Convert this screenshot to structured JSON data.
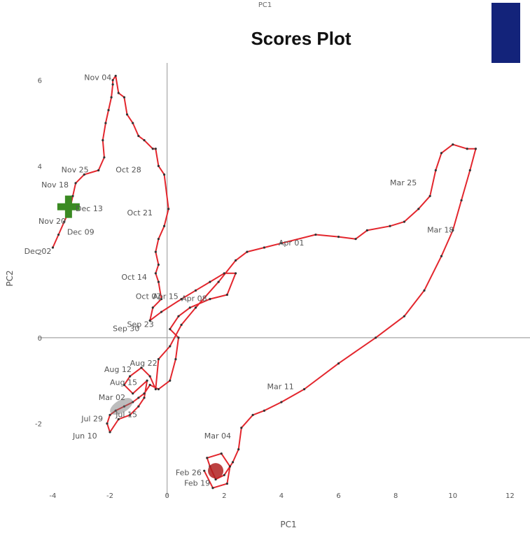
{
  "chart_data": {
    "type": "line",
    "title": "Scores Plot",
    "top_label": "PC1",
    "xlabel": "PC1",
    "ylabel": "PC2",
    "xlim": [
      -4.5,
      12.7
    ],
    "ylim": [
      -3.7,
      6.4
    ],
    "xticks": [
      -4,
      -2,
      0,
      2,
      4,
      6,
      8,
      10,
      12
    ],
    "yticks": [
      -2,
      0,
      2,
      4,
      6
    ],
    "grid": false,
    "legend_swatch_color": "#13237a",
    "colors": {
      "line": "#e3262d",
      "marker": "#333333",
      "cross": "#3a8a22",
      "blob": "#b02020",
      "axis": "#a6a6a6"
    },
    "series": [
      {
        "values": [
          [
            -4.0,
            2.1
          ],
          [
            -3.8,
            2.4
          ],
          [
            -3.6,
            2.7
          ],
          [
            -3.4,
            3.0
          ],
          [
            -3.3,
            3.3
          ],
          [
            -3.2,
            3.6
          ],
          [
            -2.9,
            3.8
          ],
          [
            -2.4,
            3.9
          ],
          [
            -2.2,
            4.2
          ],
          [
            -2.25,
            4.6
          ],
          [
            -2.15,
            5.0
          ],
          [
            -2.05,
            5.3
          ],
          [
            -1.95,
            5.6
          ],
          [
            -1.9,
            5.9
          ],
          [
            -1.9,
            6.0
          ],
          [
            -1.8,
            6.1
          ],
          [
            -1.7,
            5.7
          ],
          [
            -1.5,
            5.6
          ],
          [
            -1.4,
            5.2
          ],
          [
            -1.2,
            5.0
          ],
          [
            -1.0,
            4.7
          ],
          [
            -0.8,
            4.6
          ],
          [
            -0.5,
            4.4
          ],
          [
            -0.4,
            4.4
          ],
          [
            -0.3,
            4.0
          ],
          [
            -0.1,
            3.8
          ],
          [
            0.05,
            3.0
          ],
          [
            -0.1,
            2.6
          ],
          [
            -0.3,
            2.3
          ],
          [
            -0.4,
            2.0
          ],
          [
            -0.3,
            1.7
          ],
          [
            -0.4,
            1.5
          ],
          [
            -0.3,
            1.3
          ],
          [
            -0.2,
            0.9
          ],
          [
            -0.5,
            0.7
          ],
          [
            -0.6,
            0.4
          ],
          [
            -0.2,
            0.6
          ],
          [
            0.5,
            0.9
          ],
          [
            1.0,
            1.1
          ],
          [
            1.5,
            1.3
          ],
          [
            2.0,
            1.5
          ],
          [
            2.4,
            1.5
          ],
          [
            2.1,
            1.0
          ],
          [
            1.5,
            0.9
          ],
          [
            0.8,
            0.7
          ],
          [
            0.4,
            0.5
          ],
          [
            0.1,
            0.2
          ],
          [
            0.4,
            0.0
          ],
          [
            0.3,
            -0.5
          ],
          [
            0.1,
            -1.0
          ],
          [
            -0.3,
            -1.2
          ],
          [
            -0.6,
            -1.1
          ],
          [
            -0.8,
            -1.3
          ],
          [
            -1.0,
            -1.4
          ],
          [
            -1.2,
            -1.5
          ],
          [
            -1.5,
            -1.6
          ],
          [
            -1.8,
            -1.7
          ],
          [
            -2.0,
            -1.8
          ],
          [
            -2.1,
            -2.0
          ],
          [
            -2.0,
            -2.2
          ],
          [
            -1.7,
            -1.9
          ],
          [
            -1.3,
            -1.8
          ],
          [
            -1.0,
            -1.6
          ],
          [
            -0.8,
            -1.4
          ],
          [
            -0.7,
            -1.0
          ],
          [
            -1.2,
            -1.3
          ],
          [
            -1.5,
            -1.1
          ],
          [
            -1.3,
            -0.9
          ],
          [
            -0.9,
            -0.7
          ],
          [
            -0.6,
            -0.9
          ],
          [
            -0.4,
            -1.2
          ],
          [
            -0.3,
            -0.5
          ],
          [
            0.1,
            -0.2
          ],
          [
            0.5,
            0.3
          ],
          [
            1.0,
            0.7
          ],
          [
            1.8,
            1.3
          ],
          [
            2.4,
            1.8
          ],
          [
            2.8,
            2.0
          ],
          [
            3.4,
            2.1
          ],
          [
            4.0,
            2.2
          ],
          [
            5.2,
            2.4
          ],
          [
            6.0,
            2.35
          ],
          [
            6.6,
            2.3
          ],
          [
            7.0,
            2.5
          ],
          [
            7.8,
            2.6
          ],
          [
            8.3,
            2.7
          ],
          [
            8.8,
            3.0
          ],
          [
            9.2,
            3.3
          ],
          [
            9.4,
            3.9
          ],
          [
            9.6,
            4.3
          ],
          [
            10.0,
            4.5
          ],
          [
            10.5,
            4.4
          ],
          [
            10.8,
            4.4
          ],
          [
            10.6,
            3.9
          ],
          [
            10.3,
            3.2
          ],
          [
            10.0,
            2.5
          ],
          [
            9.6,
            1.9
          ],
          [
            9.0,
            1.1
          ],
          [
            8.3,
            0.5
          ],
          [
            7.3,
            0.0
          ],
          [
            6.0,
            -0.6
          ],
          [
            4.8,
            -1.2
          ],
          [
            4.0,
            -1.5
          ],
          [
            3.4,
            -1.7
          ],
          [
            3.0,
            -1.8
          ],
          [
            2.6,
            -2.1
          ],
          [
            2.5,
            -2.6
          ],
          [
            2.3,
            -2.9
          ],
          [
            2.0,
            -3.2
          ],
          [
            1.7,
            -3.3
          ],
          [
            1.5,
            -3.0
          ],
          [
            1.4,
            -2.8
          ],
          [
            1.9,
            -2.7
          ],
          [
            2.2,
            -3.0
          ],
          [
            2.1,
            -3.4
          ],
          [
            1.6,
            -3.5
          ],
          [
            1.3,
            -3.1
          ]
        ]
      }
    ],
    "labels": [
      {
        "text": "Nov 04",
        "x": -2.9,
        "y": 6.0
      },
      {
        "text": "Oct 28",
        "x": -1.8,
        "y": 3.85
      },
      {
        "text": "Nov 25",
        "x": -3.7,
        "y": 3.85
      },
      {
        "text": "Nov 18",
        "x": -4.4,
        "y": 3.5
      },
      {
        "text": "Dec 13",
        "x": -3.2,
        "y": 2.95
      },
      {
        "text": "Nov 20",
        "x": -4.5,
        "y": 2.65
      },
      {
        "text": "Dec 09",
        "x": -3.5,
        "y": 2.4
      },
      {
        "text": "Dec 02",
        "x": -5.0,
        "y": 1.95
      },
      {
        "text": "Oct 21",
        "x": -1.4,
        "y": 2.85
      },
      {
        "text": "Oct 14",
        "x": -1.6,
        "y": 1.35
      },
      {
        "text": "Oct 07",
        "x": -1.1,
        "y": 0.9
      },
      {
        "text": "Sep 30",
        "x": -1.9,
        "y": 0.15
      },
      {
        "text": "Sep 23",
        "x": -1.4,
        "y": 0.25
      },
      {
        "text": "Apr 15",
        "x": -0.5,
        "y": 0.9
      },
      {
        "text": "Apr 08",
        "x": 0.5,
        "y": 0.85
      },
      {
        "text": "Apr 01",
        "x": 3.9,
        "y": 2.15
      },
      {
        "text": "Mar 25",
        "x": 7.8,
        "y": 3.55
      },
      {
        "text": "Mar 18",
        "x": 9.1,
        "y": 2.45
      },
      {
        "text": "Mar 11",
        "x": 3.5,
        "y": -1.2
      },
      {
        "text": "Mar 04",
        "x": 1.3,
        "y": -2.35
      },
      {
        "text": "Feb 26",
        "x": 0.3,
        "y": -3.2
      },
      {
        "text": "Feb 19",
        "x": 0.6,
        "y": -3.45
      },
      {
        "text": "Aug 12",
        "x": -2.2,
        "y": -0.8
      },
      {
        "text": "Aug 15",
        "x": -2.0,
        "y": -1.1
      },
      {
        "text": "Aug 22",
        "x": -1.3,
        "y": -0.65
      },
      {
        "text": "Mar 02",
        "x": -2.4,
        "y": -1.45
      },
      {
        "text": "Jul 29",
        "x": -3.0,
        "y": -1.95
      },
      {
        "text": "Jun 10",
        "x": -3.3,
        "y": -2.35
      },
      {
        "text": "Jul 15",
        "x": -1.8,
        "y": -1.85
      }
    ],
    "cross_marker": {
      "x": -3.45,
      "y": 3.05
    }
  }
}
